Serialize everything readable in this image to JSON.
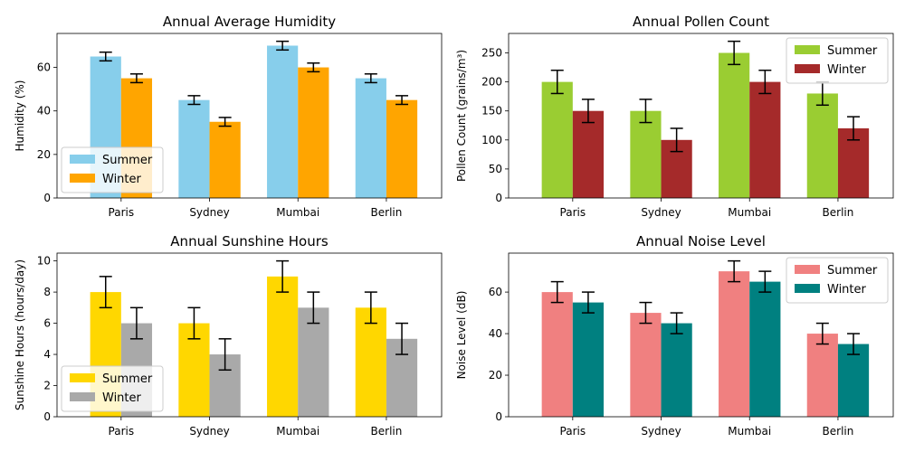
{
  "chart_data": [
    {
      "type": "bar",
      "title": "Annual Average Humidity",
      "xlabel": "",
      "ylabel": "Humidity (%)",
      "categories": [
        "Paris",
        "Sydney",
        "Mumbai",
        "Berlin"
      ],
      "ylim": [
        0,
        75.6
      ],
      "yticks": [
        0,
        20,
        40,
        60
      ],
      "series": [
        {
          "name": "Summer",
          "color": "#87CEEB",
          "values": [
            65,
            45,
            70,
            55
          ],
          "errors": [
            2,
            2,
            2,
            2
          ]
        },
        {
          "name": "Winter",
          "color": "#FFA500",
          "values": [
            55,
            35,
            60,
            45
          ],
          "errors": [
            2,
            2,
            2,
            2
          ]
        }
      ],
      "legend": "lower-left",
      "grid": false
    },
    {
      "type": "bar",
      "title": "Annual Pollen Count",
      "xlabel": "",
      "ylabel": "Pollen Count (grains/m³)",
      "categories": [
        "Paris",
        "Sydney",
        "Mumbai",
        "Berlin"
      ],
      "ylim": [
        0,
        283.5
      ],
      "yticks": [
        0,
        50,
        100,
        150,
        200,
        250
      ],
      "series": [
        {
          "name": "Summer",
          "color": "#9ACD32",
          "values": [
            200,
            150,
            250,
            180
          ],
          "errors": [
            20,
            20,
            20,
            20
          ]
        },
        {
          "name": "Winter",
          "color": "#A52A2A",
          "values": [
            150,
            100,
            200,
            120
          ],
          "errors": [
            20,
            20,
            20,
            20
          ]
        }
      ],
      "legend": "upper-right",
      "grid": false
    },
    {
      "type": "bar",
      "title": "Annual Sunshine Hours",
      "xlabel": "",
      "ylabel": "Sunshine Hours (hours/day)",
      "categories": [
        "Paris",
        "Sydney",
        "Mumbai",
        "Berlin"
      ],
      "ylim": [
        0,
        10.5
      ],
      "yticks": [
        0,
        2,
        4,
        6,
        8,
        10
      ],
      "series": [
        {
          "name": "Summer",
          "color": "#FFD700",
          "values": [
            8,
            6,
            9,
            7
          ],
          "errors": [
            1,
            1,
            1,
            1
          ]
        },
        {
          "name": "Winter",
          "color": "#A9A9A9",
          "values": [
            6,
            4,
            7,
            5
          ],
          "errors": [
            1,
            1,
            1,
            1
          ]
        }
      ],
      "legend": "lower-left",
      "grid": false
    },
    {
      "type": "bar",
      "title": "Annual Noise Level",
      "xlabel": "",
      "ylabel": "Noise Level (dB)",
      "categories": [
        "Paris",
        "Sydney",
        "Mumbai",
        "Berlin"
      ],
      "ylim": [
        0,
        78.75
      ],
      "yticks": [
        0,
        20,
        40,
        60
      ],
      "series": [
        {
          "name": "Summer",
          "color": "#F08080",
          "values": [
            60,
            50,
            70,
            40
          ],
          "errors": [
            5,
            5,
            5,
            5
          ]
        },
        {
          "name": "Winter",
          "color": "#008080",
          "values": [
            55,
            45,
            65,
            35
          ],
          "errors": [
            5,
            5,
            5,
            5
          ]
        }
      ],
      "legend": "upper-right",
      "grid": false
    }
  ]
}
